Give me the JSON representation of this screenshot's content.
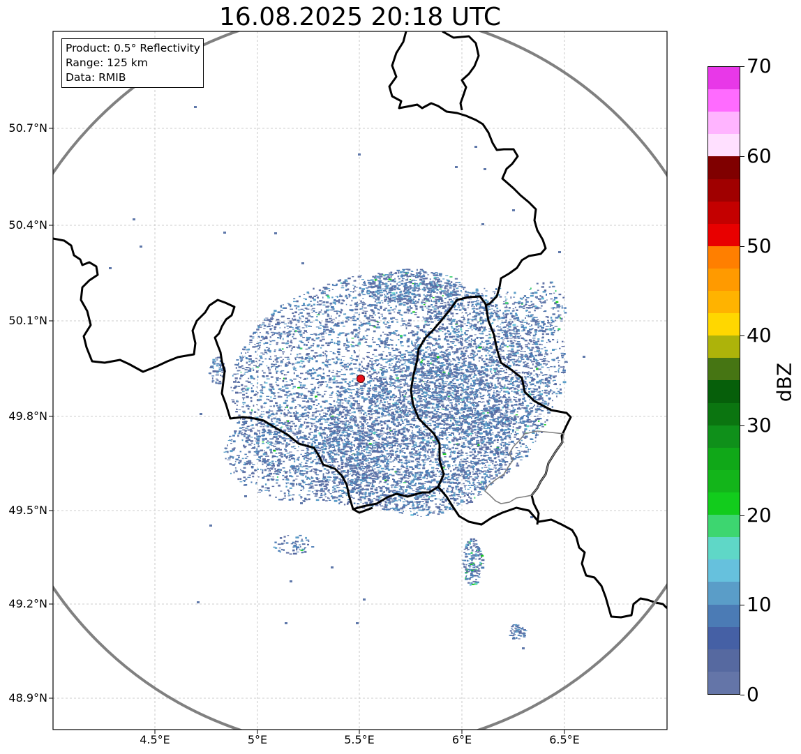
{
  "title": "16.08.2025 20:18 UTC",
  "info_box": {
    "product": "Product: 0.5° Reflectivity",
    "range": "Range: 125 km",
    "data": "Data: RMIB"
  },
  "map": {
    "lat_labels": [
      "50.7°N",
      "50.4°N",
      "50.1°N",
      "49.8°N",
      "49.5°N",
      "49.2°N",
      "48.9°N"
    ],
    "lon_labels": [
      "4.5°E",
      "5°E",
      "5.5°E",
      "6°E",
      "6.5°E"
    ],
    "range_ring_color": "#808080",
    "border_color": "#000000",
    "radar_site_color": "#e8101a",
    "echo_main_color": "#5f78aa",
    "echo_accent_color": "#3cd070"
  },
  "colorbar": {
    "label": "dBZ",
    "tick_labels": [
      "0",
      "10",
      "20",
      "30",
      "40",
      "50",
      "60",
      "70"
    ],
    "min": 0,
    "max": 70,
    "colors": [
      "#6475a8",
      "#5669a0",
      "#4560a5",
      "#4b7bb5",
      "#5a9dc8",
      "#66c1dd",
      "#5fd7c7",
      "#3dd670",
      "#12cc1c",
      "#13b51a",
      "#10a818",
      "#0f901a",
      "#0b7510",
      "#065f0a",
      "#467513",
      "#adb30a",
      "#ffd700",
      "#ffb300",
      "#ff9a00",
      "#ff7f00",
      "#e80000",
      "#c40000",
      "#a00000",
      "#800000",
      "#ffe0ff",
      "#ffb4ff",
      "#ff6bff",
      "#e838e8"
    ]
  }
}
